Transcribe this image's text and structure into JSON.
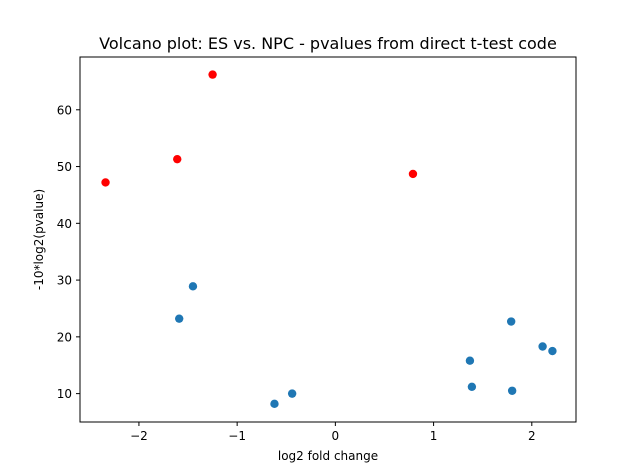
{
  "chart_data": {
    "type": "scatter",
    "title": "Volcano plot: ES vs. NPC - pvalues from direct t-test code",
    "xlabel": "log2 fold change",
    "ylabel": "-10*log2(pvalue)",
    "xlim": [
      -2.6,
      2.45
    ],
    "ylim": [
      5.0,
      69.3
    ],
    "xticks": [
      -2,
      -1,
      0,
      1,
      2
    ],
    "xtick_labels": [
      "−2",
      "−1",
      "0",
      "1",
      "2"
    ],
    "yticks": [
      10,
      20,
      30,
      40,
      50,
      60
    ],
    "ytick_labels": [
      "10",
      "20",
      "30",
      "40",
      "50",
      "60"
    ],
    "grid": false,
    "series": [
      {
        "color": "#1f77b4",
        "points": [
          {
            "x": -1.45,
            "y": 28.9
          },
          {
            "x": -1.59,
            "y": 23.2
          },
          {
            "x": -0.62,
            "y": 8.2
          },
          {
            "x": -0.44,
            "y": 10.0
          },
          {
            "x": 1.37,
            "y": 15.8
          },
          {
            "x": 1.39,
            "y": 11.2
          },
          {
            "x": 1.79,
            "y": 22.7
          },
          {
            "x": 1.8,
            "y": 10.5
          },
          {
            "x": 2.11,
            "y": 18.3
          },
          {
            "x": 2.21,
            "y": 17.5
          }
        ]
      },
      {
        "color": "#ff0000",
        "points": [
          {
            "x": -2.34,
            "y": 47.2
          },
          {
            "x": -1.61,
            "y": 51.3
          },
          {
            "x": -1.25,
            "y": 66.2
          },
          {
            "x": 0.79,
            "y": 48.7
          }
        ]
      }
    ]
  }
}
